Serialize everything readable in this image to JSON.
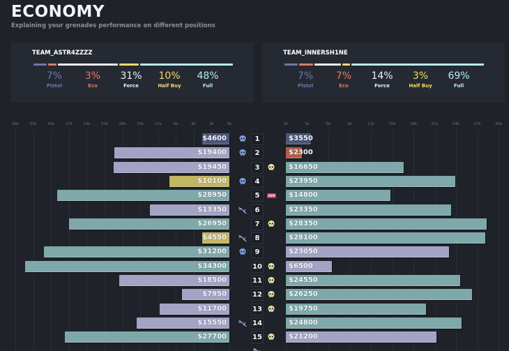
{
  "header": {
    "title": "ECONOMY",
    "subtitle": "Explaining your grenades performance on different positions"
  },
  "colors": {
    "pistol": "#6f78a8",
    "eco": "#e07b66",
    "force": "#eef0ff",
    "half_buy": "#f2dc6a",
    "full": "#b8ecf4",
    "bar_pistol": "#4c5679",
    "bar_eco": "#b35c4b",
    "bar_force": "#a3a3c6",
    "bar_half_buy": "#c3b663",
    "bar_full": "#7ea8a9",
    "skull_left": "#7ea3dc",
    "skull_right": "#f1e3a0",
    "defuse": "#9ab4e0",
    "dem": "#d0334e"
  },
  "teams": [
    {
      "name": "TEAM_ASTR4ZZZZ",
      "stats": [
        {
          "key": "pistol",
          "pct": "7%",
          "label": "Pistol",
          "value": 7
        },
        {
          "key": "eco",
          "pct": "3%",
          "label": "Eco",
          "value": 3
        },
        {
          "key": "force",
          "pct": "31%",
          "label": "Force",
          "value": 31
        },
        {
          "key": "half_buy",
          "pct": "10%",
          "label": "Half Buy",
          "value": 10
        },
        {
          "key": "full",
          "pct": "48%",
          "label": "Full",
          "value": 48
        }
      ]
    },
    {
      "name": "TEAM_INNERSH1NE",
      "stats": [
        {
          "key": "pistol",
          "pct": "7%",
          "label": "Pistol",
          "value": 7
        },
        {
          "key": "eco",
          "pct": "7%",
          "label": "Eco",
          "value": 7
        },
        {
          "key": "force",
          "pct": "14%",
          "label": "Force",
          "value": 14
        },
        {
          "key": "half_buy",
          "pct": "3%",
          "label": "Half Buy",
          "value": 3
        },
        {
          "key": "full",
          "pct": "69%",
          "label": "Full",
          "value": 69
        }
      ]
    }
  ],
  "chart_data": {
    "type": "bar",
    "title": "ECONOMY",
    "left_axis": {
      "ticks": [
        "36k",
        "33k",
        "30k",
        "27k",
        "24k",
        "21k",
        "18k",
        "15k",
        "12k",
        "9k",
        "6k",
        "3k",
        "0k"
      ],
      "range": [
        0,
        36000
      ]
    },
    "right_axis": {
      "ticks": [
        "0k",
        "3k",
        "6k",
        "9k",
        "12k",
        "15k",
        "18k",
        "21k",
        "24k",
        "27k",
        "30k"
      ],
      "range": [
        0,
        30000
      ]
    },
    "rounds": [
      {
        "round": "1",
        "left": {
          "value": 4600,
          "label": "$4600",
          "type": "pistol"
        },
        "right": {
          "value": 3550,
          "label": "$3550",
          "type": "pistol"
        },
        "left_icon": "skull",
        "right_icon": null
      },
      {
        "round": "2",
        "left": {
          "value": 19400,
          "label": "$19400",
          "type": "force"
        },
        "right": {
          "value": 2300,
          "label": "$2300",
          "type": "eco"
        },
        "left_icon": "skull",
        "right_icon": null
      },
      {
        "round": "3",
        "left": {
          "value": 19450,
          "label": "$19450",
          "type": "force"
        },
        "right": {
          "value": 16650,
          "label": "$16650",
          "type": "full"
        },
        "left_icon": null,
        "right_icon": "skull"
      },
      {
        "round": "4",
        "left": {
          "value": 10100,
          "label": "$10100",
          "type": "half_buy"
        },
        "right": {
          "value": 23950,
          "label": "$23950",
          "type": "full"
        },
        "left_icon": "skull",
        "right_icon": null
      },
      {
        "round": "5",
        "left": {
          "value": 28950,
          "label": "$28950",
          "type": "full"
        },
        "right": {
          "value": 14800,
          "label": "$14800",
          "type": "full"
        },
        "left_icon": null,
        "right_icon": "dem"
      },
      {
        "round": "6",
        "left": {
          "value": 13350,
          "label": "$13350",
          "type": "force"
        },
        "right": {
          "value": 23350,
          "label": "$23350",
          "type": "full"
        },
        "left_icon": "defuse",
        "right_icon": null
      },
      {
        "round": "7",
        "left": {
          "value": 26950,
          "label": "$26950",
          "type": "full"
        },
        "right": {
          "value": 28350,
          "label": "$28350",
          "type": "full"
        },
        "left_icon": null,
        "right_icon": "skull"
      },
      {
        "round": "8",
        "left": {
          "value": 4550,
          "label": "$4550",
          "type": "half_buy"
        },
        "right": {
          "value": 28100,
          "label": "$28100",
          "type": "full"
        },
        "left_icon": "defuse",
        "right_icon": null
      },
      {
        "round": "9",
        "left": {
          "value": 31200,
          "label": "$31200",
          "type": "full"
        },
        "right": {
          "value": 23050,
          "label": "$23050",
          "type": "force"
        },
        "left_icon": "skull",
        "right_icon": null
      },
      {
        "round": "10",
        "left": {
          "value": 34300,
          "label": "$34300",
          "type": "full"
        },
        "right": {
          "value": 6500,
          "label": "$6500",
          "type": "force"
        },
        "left_icon": null,
        "right_icon": "skull"
      },
      {
        "round": "11",
        "left": {
          "value": 18500,
          "label": "$18500",
          "type": "force"
        },
        "right": {
          "value": 24550,
          "label": "$24550",
          "type": "full"
        },
        "left_icon": null,
        "right_icon": "skull"
      },
      {
        "round": "12",
        "left": {
          "value": 7950,
          "label": "$7950",
          "type": "force"
        },
        "right": {
          "value": 26250,
          "label": "$26250",
          "type": "full"
        },
        "left_icon": null,
        "right_icon": "skull"
      },
      {
        "round": "13",
        "left": {
          "value": 11700,
          "label": "$11700",
          "type": "force"
        },
        "right": {
          "value": 19750,
          "label": "$19750",
          "type": "full"
        },
        "left_icon": null,
        "right_icon": "skull"
      },
      {
        "round": "14",
        "left": {
          "value": 15550,
          "label": "$15550",
          "type": "force"
        },
        "right": {
          "value": 24800,
          "label": "$24800",
          "type": "full"
        },
        "left_icon": "defuse",
        "right_icon": null
      },
      {
        "round": "15",
        "left": {
          "value": 27700,
          "label": "$27700",
          "type": "full"
        },
        "right": {
          "value": 21200,
          "label": "$21200",
          "type": "force"
        },
        "left_icon": null,
        "right_icon": "skull"
      }
    ],
    "dem_label": "DEM"
  }
}
